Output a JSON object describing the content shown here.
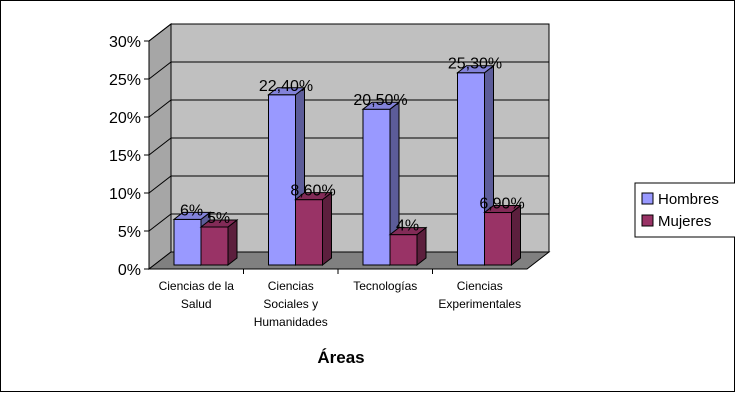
{
  "chart_data": {
    "type": "bar",
    "subtype": "3d-clustered-column",
    "categories": [
      [
        "Ciencias de la",
        "Salud"
      ],
      [
        "Ciencias",
        "Sociales y",
        "Humanidades"
      ],
      [
        "Tecnologías"
      ],
      [
        "Ciencias",
        "Experimentales"
      ]
    ],
    "series": [
      {
        "name": "Hombres",
        "color": "#9999ff",
        "values": [
          6,
          22.4,
          20.5,
          25.3
        ],
        "labels": [
          "6%",
          "22,40%",
          "20,50%",
          "25,30%"
        ]
      },
      {
        "name": "Mujeres",
        "color": "#993366",
        "values": [
          5,
          8.6,
          4,
          6.9
        ],
        "labels": [
          "5%",
          "8,60%",
          "4%",
          "6,90%"
        ]
      }
    ],
    "xlabel": "Áreas",
    "ylabel": "",
    "ylim": [
      0,
      30
    ],
    "yticks": [
      0,
      5,
      10,
      15,
      20,
      25,
      30
    ],
    "ytick_labels": [
      "0%",
      "5%",
      "10%",
      "15%",
      "20%",
      "25%",
      "30%"
    ],
    "grid": true,
    "legend_position": "right",
    "wall_color": "#c0c0c0",
    "floor_color": "#808080"
  }
}
